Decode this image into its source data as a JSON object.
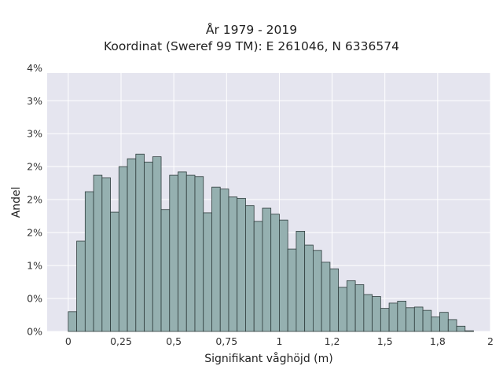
{
  "chart_data": {
    "type": "bar",
    "title": "År 1979 - 2019",
    "subtitle": "Koordinat (Sweref 99 TM): E 261046, N 6336574",
    "xlabel": "Signifikant våghöjd (m)",
    "ylabel": "Andel",
    "x_tick_values": [
      0,
      0.25,
      0.5,
      0.75,
      1,
      1.25,
      1.5,
      1.75,
      2
    ],
    "x_tick_labels": [
      "0",
      "0,25",
      "0,5",
      "0,75",
      "1",
      "1,2",
      "1,5",
      "1,8",
      "2"
    ],
    "y_tick_values": [
      0,
      0.005,
      0.01,
      0.015,
      0.02,
      0.025,
      0.03,
      0.035,
      0.04
    ],
    "y_tick_labels": [
      "0%",
      "0%",
      "1%",
      "2%",
      "2%",
      "2%",
      "3%",
      "3%",
      "4%"
    ],
    "xlim": [
      -0.1,
      2.0
    ],
    "ylim": [
      0,
      0.0392
    ],
    "grid": true,
    "bin_width": 0.04,
    "bins_left": [
      0.0,
      0.04,
      0.08,
      0.12,
      0.16,
      0.2,
      0.24,
      0.28,
      0.32,
      0.36,
      0.4,
      0.44,
      0.48,
      0.52,
      0.56,
      0.6,
      0.64,
      0.68,
      0.72,
      0.76,
      0.8,
      0.84,
      0.88,
      0.92,
      0.96,
      1.0,
      1.04,
      1.08,
      1.12,
      1.16,
      1.2,
      1.24,
      1.28,
      1.32,
      1.36,
      1.4,
      1.44,
      1.48,
      1.52,
      1.56,
      1.6,
      1.64,
      1.68,
      1.72,
      1.76,
      1.8,
      1.84,
      1.88
    ],
    "values": [
      0.003,
      0.0137,
      0.0212,
      0.0237,
      0.0233,
      0.0181,
      0.025,
      0.0262,
      0.0269,
      0.0257,
      0.0265,
      0.0185,
      0.0237,
      0.0242,
      0.0237,
      0.0235,
      0.018,
      0.0219,
      0.0216,
      0.0204,
      0.0202,
      0.0191,
      0.0167,
      0.0187,
      0.0178,
      0.0169,
      0.0125,
      0.0152,
      0.0131,
      0.0123,
      0.0105,
      0.0095,
      0.0067,
      0.0077,
      0.0071,
      0.0056,
      0.0053,
      0.0035,
      0.0043,
      0.0046,
      0.0036,
      0.0037,
      0.0032,
      0.0022,
      0.0029,
      0.0018,
      0.0008,
      0.0001
    ],
    "bar_fill": "#95b0b0",
    "bar_edge": "#2f3d3d",
    "plot_background": "#e5e5ef",
    "grid_color": "#ffffff"
  }
}
